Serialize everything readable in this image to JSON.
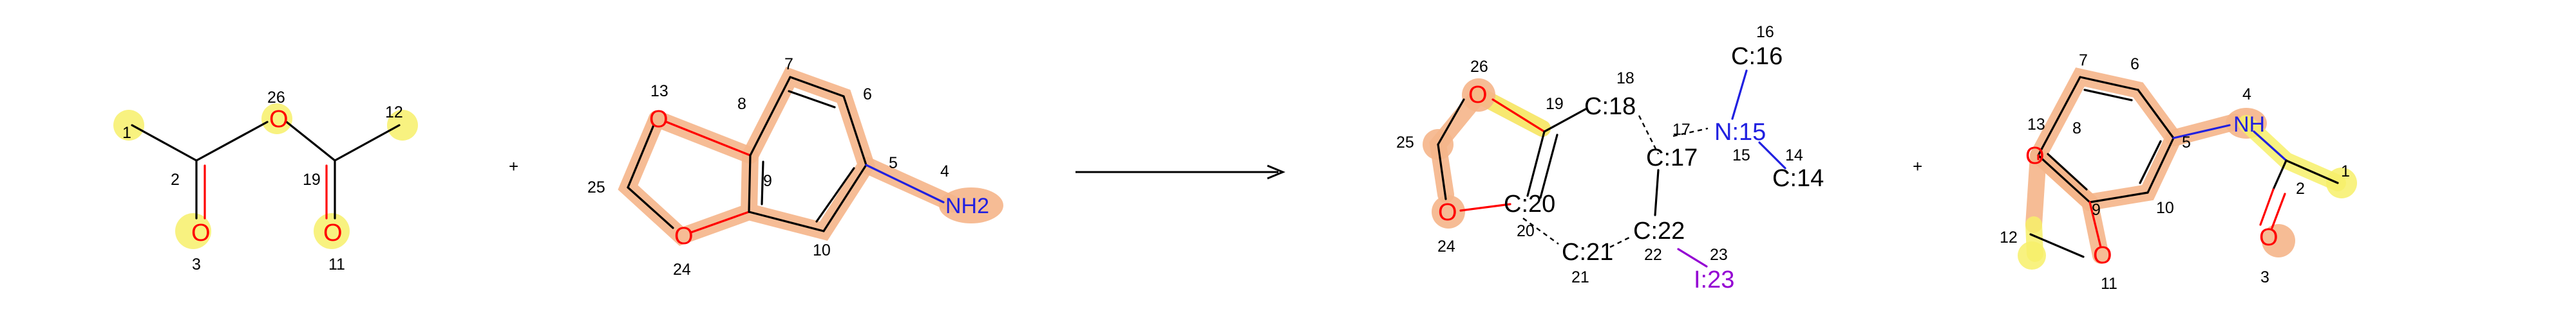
{
  "reactant1": {
    "atom_labels": [
      "O",
      "O",
      "O"
    ],
    "atom_numbers": [
      "1",
      "2",
      "3",
      "26",
      "19",
      "11",
      "12"
    ]
  },
  "plus_sign": "+",
  "reactant2": {
    "atom_labels": [
      "O",
      "O",
      "NH2"
    ],
    "atom_numbers": [
      "13",
      "8",
      "7",
      "6",
      "5",
      "4",
      "25",
      "9",
      "24",
      "10"
    ]
  },
  "arrow_label": "",
  "product_core": {
    "atom_labels": [
      "O",
      "C:18",
      "N:15",
      "C:16",
      "C:20",
      "O",
      "C:17",
      "C:14",
      "C:22",
      "C:21",
      "I:23"
    ],
    "atom_numbers": [
      "26",
      "19",
      "18",
      "16",
      "17",
      "14",
      "15",
      "25",
      "20",
      "24",
      "22",
      "23",
      "21"
    ]
  },
  "product2": {
    "atom_labels": [
      "NH",
      "O",
      "O",
      "O"
    ],
    "atom_numbers": [
      "7",
      "6",
      "4",
      "13",
      "8",
      "5",
      "1",
      "2",
      "10",
      "9",
      "12",
      "11",
      "3"
    ]
  },
  "colors": {
    "oxygen": "#ff0000",
    "nitrogen": "#2020e0",
    "iodine": "#9400d3",
    "highlight_yellow": "#f7f06a",
    "highlight_orange": "#f5b58a"
  }
}
